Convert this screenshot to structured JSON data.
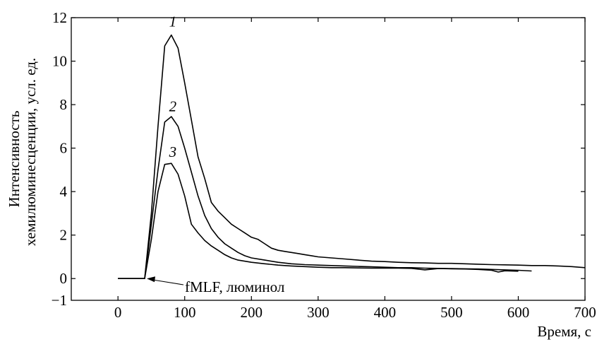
{
  "chart_data": {
    "type": "line",
    "title": "",
    "xlabel": "Время, с",
    "ylabel_line1": "Интенсивность",
    "ylabel_line2": "хемилюминесценции, усл. ед.",
    "xlim": [
      -70,
      700
    ],
    "ylim": [
      -1,
      12
    ],
    "xticks": [
      0,
      100,
      200,
      300,
      400,
      500,
      600,
      700
    ],
    "yticks": [
      0,
      2,
      4,
      6,
      8,
      10,
      12
    ],
    "grid": false,
    "legend": "none",
    "annotation": {
      "text": "fMLF, люминол",
      "points_to": [
        40,
        0
      ]
    },
    "series": [
      {
        "name": "1",
        "points": [
          [
            0,
            0
          ],
          [
            20,
            0
          ],
          [
            40,
            0
          ],
          [
            50,
            3.0
          ],
          [
            60,
            7.0
          ],
          [
            70,
            10.7
          ],
          [
            80,
            11.2
          ],
          [
            90,
            10.6
          ],
          [
            100,
            9.0
          ],
          [
            110,
            7.3
          ],
          [
            120,
            5.6
          ],
          [
            130,
            4.6
          ],
          [
            140,
            3.5
          ],
          [
            150,
            3.1
          ],
          [
            160,
            2.8
          ],
          [
            170,
            2.5
          ],
          [
            180,
            2.3
          ],
          [
            190,
            2.1
          ],
          [
            200,
            1.9
          ],
          [
            210,
            1.8
          ],
          [
            220,
            1.6
          ],
          [
            230,
            1.4
          ],
          [
            240,
            1.3
          ],
          [
            250,
            1.25
          ],
          [
            260,
            1.2
          ],
          [
            270,
            1.15
          ],
          [
            280,
            1.1
          ],
          [
            290,
            1.05
          ],
          [
            300,
            1.0
          ],
          [
            320,
            0.95
          ],
          [
            340,
            0.9
          ],
          [
            360,
            0.85
          ],
          [
            380,
            0.8
          ],
          [
            400,
            0.78
          ],
          [
            420,
            0.75
          ],
          [
            440,
            0.73
          ],
          [
            460,
            0.72
          ],
          [
            480,
            0.7
          ],
          [
            500,
            0.7
          ],
          [
            520,
            0.68
          ],
          [
            540,
            0.66
          ],
          [
            560,
            0.64
          ],
          [
            580,
            0.63
          ],
          [
            600,
            0.62
          ],
          [
            620,
            0.6
          ],
          [
            640,
            0.6
          ],
          [
            660,
            0.58
          ],
          [
            680,
            0.55
          ],
          [
            700,
            0.5
          ]
        ]
      },
      {
        "name": "2",
        "points": [
          [
            0,
            0
          ],
          [
            20,
            0
          ],
          [
            40,
            0
          ],
          [
            50,
            2.5
          ],
          [
            60,
            5.0
          ],
          [
            70,
            7.2
          ],
          [
            80,
            7.45
          ],
          [
            90,
            7.0
          ],
          [
            100,
            6.0
          ],
          [
            110,
            4.9
          ],
          [
            120,
            3.8
          ],
          [
            130,
            2.9
          ],
          [
            140,
            2.3
          ],
          [
            150,
            1.9
          ],
          [
            160,
            1.6
          ],
          [
            170,
            1.4
          ],
          [
            180,
            1.2
          ],
          [
            190,
            1.05
          ],
          [
            200,
            0.95
          ],
          [
            220,
            0.85
          ],
          [
            240,
            0.75
          ],
          [
            260,
            0.68
          ],
          [
            280,
            0.64
          ],
          [
            300,
            0.62
          ],
          [
            320,
            0.6
          ],
          [
            340,
            0.58
          ],
          [
            360,
            0.56
          ],
          [
            380,
            0.54
          ],
          [
            400,
            0.52
          ],
          [
            420,
            0.5
          ],
          [
            440,
            0.5
          ],
          [
            460,
            0.48
          ],
          [
            480,
            0.47
          ],
          [
            500,
            0.46
          ],
          [
            520,
            0.45
          ],
          [
            540,
            0.44
          ],
          [
            560,
            0.42
          ],
          [
            580,
            0.4
          ],
          [
            600,
            0.38
          ],
          [
            620,
            0.35
          ]
        ]
      },
      {
        "name": "3",
        "points": [
          [
            0,
            0
          ],
          [
            20,
            0
          ],
          [
            40,
            0
          ],
          [
            50,
            1.8
          ],
          [
            60,
            4.0
          ],
          [
            70,
            5.25
          ],
          [
            80,
            5.3
          ],
          [
            90,
            4.8
          ],
          [
            100,
            3.8
          ],
          [
            110,
            2.5
          ],
          [
            120,
            2.1
          ],
          [
            130,
            1.75
          ],
          [
            140,
            1.5
          ],
          [
            150,
            1.3
          ],
          [
            160,
            1.1
          ],
          [
            170,
            0.95
          ],
          [
            180,
            0.85
          ],
          [
            200,
            0.75
          ],
          [
            220,
            0.68
          ],
          [
            240,
            0.62
          ],
          [
            260,
            0.58
          ],
          [
            280,
            0.55
          ],
          [
            300,
            0.52
          ],
          [
            320,
            0.5
          ],
          [
            340,
            0.5
          ],
          [
            360,
            0.49
          ],
          [
            380,
            0.48
          ],
          [
            400,
            0.48
          ],
          [
            420,
            0.48
          ],
          [
            440,
            0.47
          ],
          [
            460,
            0.4
          ],
          [
            480,
            0.46
          ],
          [
            500,
            0.45
          ],
          [
            520,
            0.44
          ],
          [
            540,
            0.42
          ],
          [
            560,
            0.38
          ],
          [
            570,
            0.3
          ],
          [
            580,
            0.36
          ],
          [
            600,
            0.34
          ]
        ]
      }
    ],
    "series_label_positions": {
      "1": [
        80,
        11.6
      ],
      "2": [
        80,
        7.7
      ],
      "3": [
        80,
        5.6
      ]
    }
  }
}
